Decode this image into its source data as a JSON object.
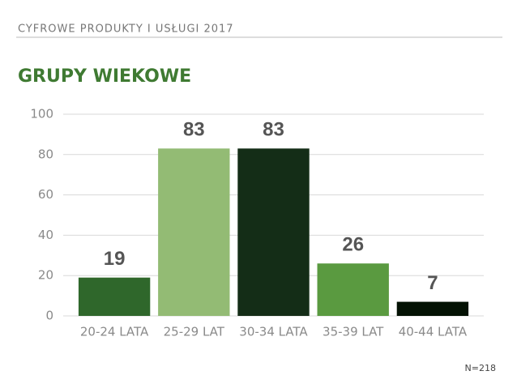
{
  "header": "CYFROWE PRODUKTY I USŁUGI 2017",
  "chart_data": {
    "type": "bar",
    "title": "GRUPY WIEKOWE",
    "categories": [
      "20-24 LATA",
      "25-29 LAT",
      "30-34 LATA",
      "35-39 LAT",
      "40-44 LATA"
    ],
    "values": [
      19,
      83,
      83,
      26,
      7
    ],
    "colors": [
      "#2f672b",
      "#93bb74",
      "#142d17",
      "#5a9a40",
      "#041204"
    ],
    "ylim": [
      0,
      100
    ],
    "yticks": [
      0,
      20,
      40,
      60,
      80,
      100
    ],
    "grid": true
  },
  "note": "N=218"
}
